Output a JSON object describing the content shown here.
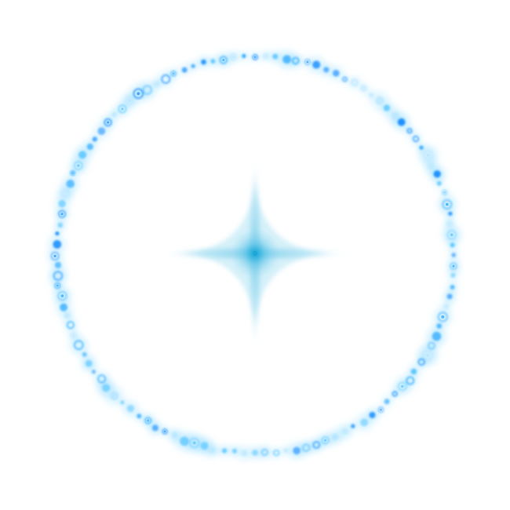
{
  "scene": {
    "background": "#ffffff",
    "ring": {
      "bead_colors": [
        "#1e90ff",
        "#29a9ff",
        "#5ec8ff",
        "#b8e6ff"
      ],
      "glow_color": "#7ad4ff"
    },
    "sparkle": {
      "core_color": "#1aa7d8",
      "glow_color": "#9fdcf2"
    }
  }
}
